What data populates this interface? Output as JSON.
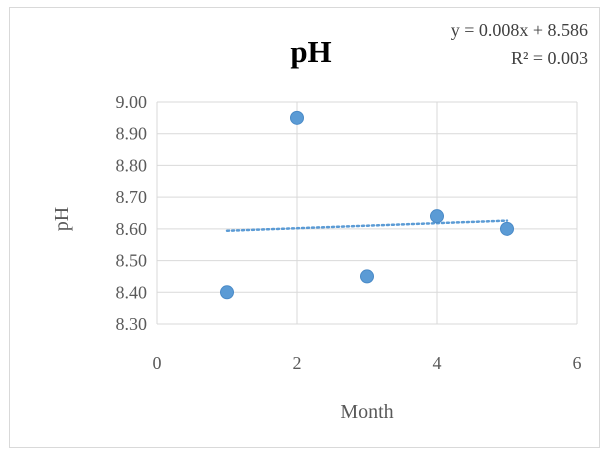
{
  "chart_data": {
    "type": "scatter",
    "title": "pH",
    "xlabel": "Month",
    "ylabel": "pH",
    "xlim": [
      0,
      6
    ],
    "ylim": [
      8.3,
      9.0
    ],
    "x_ticks": [
      "0",
      "2",
      "4",
      "6"
    ],
    "y_ticks": [
      "9.00",
      "8.90",
      "8.80",
      "8.70",
      "8.60",
      "8.50",
      "8.40",
      "8.30"
    ],
    "grid": true,
    "series": [
      {
        "x": [
          1,
          2,
          3,
          4,
          5
        ],
        "y": [
          8.4,
          8.95,
          8.45,
          8.64,
          8.6
        ]
      }
    ],
    "trendline": {
      "type": "linear",
      "slope": 0.008,
      "intercept": 8.586,
      "x_range": [
        1,
        5
      ],
      "equation": "y = 0.008x + 8.586",
      "r_squared": "R² = 0.003"
    },
    "colors": {
      "marker": "#5b9bd5",
      "trendline": "#5b9bd5",
      "grid": "#d9d9d9"
    }
  }
}
